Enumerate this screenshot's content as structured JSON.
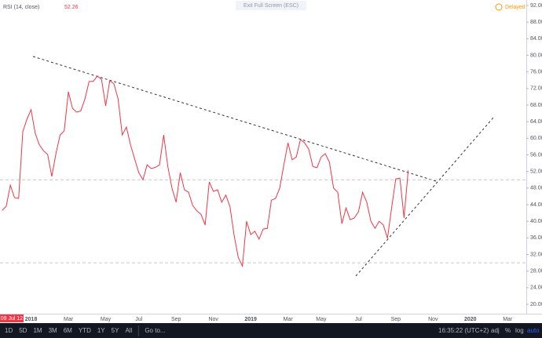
{
  "chart_data": {
    "type": "line",
    "title": "RSI (14, close)",
    "last_value": 52.26,
    "color": "#f23645",
    "categories": [
      null,
      null,
      null,
      null,
      null,
      null,
      null,
      "2018",
      null,
      null,
      null,
      null,
      null,
      null,
      null,
      null,
      "Mar",
      null,
      null,
      null,
      null,
      null,
      null,
      null,
      null,
      "May",
      null,
      null,
      null,
      null,
      null,
      null,
      null,
      "Jul",
      null,
      null,
      null,
      null,
      null,
      null,
      null,
      null,
      "Sep",
      null,
      null,
      null,
      null,
      null,
      null,
      null,
      null,
      "Nov",
      null,
      null,
      null,
      null,
      null,
      null,
      null,
      null,
      "2019",
      null,
      null,
      null,
      null,
      null,
      null,
      null,
      null,
      "Mar",
      null,
      null,
      null,
      null,
      null,
      null,
      null,
      "May",
      null,
      null,
      null,
      null,
      null,
      null,
      null,
      null,
      "Jul",
      null,
      null,
      null,
      null,
      null,
      null,
      null,
      null,
      "Sep",
      null,
      null,
      null,
      null,
      null,
      null,
      null,
      null,
      "Nov",
      null,
      null,
      null,
      null,
      null,
      null,
      null,
      null,
      "2020",
      null,
      null,
      null,
      null,
      null,
      null,
      null,
      null,
      "Mar",
      null,
      null,
      null,
      null
    ],
    "values": [
      42.6,
      43.6,
      48.7,
      45.7,
      45.5,
      61.6,
      64.6,
      66.9,
      61.2,
      58.4,
      57.0,
      56.1,
      50.8,
      56.3,
      60.8,
      61.8,
      71.2,
      67.2,
      66.3,
      66.6,
      69.5,
      73.7,
      73.7,
      75.0,
      74.2,
      67.8,
      73.9,
      73.1,
      69.5,
      60.8,
      62.7,
      58.4,
      55.0,
      51.7,
      50.0,
      53.6,
      52.7,
      53.0,
      53.6,
      60.8,
      53.2,
      48.0,
      44.6,
      51.7,
      47.6,
      47.0,
      43.8,
      42.5,
      41.7,
      39.1,
      49.5,
      47.2,
      47.6,
      44.6,
      46.3,
      43.5,
      36.6,
      31.3,
      29.2,
      40.0,
      36.8,
      37.6,
      35.7,
      38.1,
      38.3,
      45.1,
      45.5,
      48.0,
      53.6,
      58.9,
      54.8,
      55.5,
      59.7,
      58.9,
      57.4,
      53.2,
      52.9,
      55.5,
      56.3,
      54.2,
      48.0,
      47.0,
      39.4,
      43.2,
      40.4,
      40.8,
      42.3,
      47.0,
      44.6,
      40.0,
      38.3,
      40.0,
      39.1,
      35.9,
      43.2,
      50.2,
      50.4,
      40.8,
      52.26,
      null,
      null,
      null,
      null,
      null,
      null,
      null,
      null,
      null,
      null,
      null,
      null,
      null,
      null,
      null,
      null,
      null,
      null,
      null,
      null,
      null,
      null,
      null,
      null,
      null,
      null,
      null,
      null
    ],
    "ylim": [
      20,
      92
    ],
    "yticks": [
      {
        "value": 20,
        "label": "20.00"
      },
      {
        "value": 24,
        "label": "24.00"
      },
      {
        "value": 28,
        "label": "28.00"
      },
      {
        "value": 32,
        "label": "32.00"
      },
      {
        "value": 36,
        "label": "36.00"
      },
      {
        "value": 40,
        "label": "40.00"
      },
      {
        "value": 44,
        "label": "44.00"
      },
      {
        "value": 48,
        "label": "48.00"
      },
      {
        "value": 52,
        "label": "52.00"
      },
      {
        "value": 56,
        "label": "56.00"
      },
      {
        "value": 60,
        "label": "60.00"
      },
      {
        "value": 64,
        "label": "64.00"
      },
      {
        "value": 68,
        "label": "68.00"
      },
      {
        "value": 72,
        "label": "72.00"
      },
      {
        "value": 76,
        "label": "76.00"
      },
      {
        "value": 80,
        "label": "80.00"
      },
      {
        "value": 84,
        "label": "84.00"
      },
      {
        "value": 88,
        "label": "88.00"
      },
      {
        "value": 92,
        "label": "92.00"
      }
    ],
    "levels": [
      50,
      30
    ],
    "grid": false,
    "x_marker_label": "09 Jul 12"
  },
  "header": {
    "fullscreen": "Exit Full Screen (ESC)",
    "status": "Delayed"
  },
  "toolbar": {
    "ranges": [
      "1D",
      "5D",
      "1M",
      "3M",
      "6M",
      "YTD",
      "1Y",
      "5Y",
      "All"
    ],
    "goto": "Go to...",
    "time": "16:35:22 (UTC+2)",
    "options": [
      "adj",
      "%",
      "log",
      "auto"
    ]
  }
}
